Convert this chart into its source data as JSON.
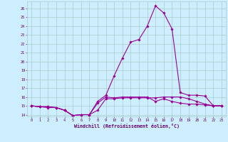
{
  "x": [
    0,
    1,
    2,
    3,
    4,
    5,
    6,
    7,
    8,
    9,
    10,
    11,
    12,
    13,
    14,
    15,
    16,
    17,
    18,
    19,
    20,
    21,
    22,
    23
  ],
  "line1": [
    15.0,
    14.9,
    14.9,
    14.8,
    14.5,
    13.9,
    14.0,
    14.0,
    14.5,
    15.8,
    15.8,
    15.9,
    15.9,
    15.9,
    15.9,
    15.9,
    16.0,
    16.0,
    16.0,
    15.8,
    15.5,
    15.2,
    15.0,
    15.0
  ],
  "line2": [
    15.0,
    14.9,
    14.9,
    14.8,
    14.5,
    13.9,
    14.0,
    14.0,
    15.3,
    16.0,
    15.9,
    16.0,
    16.0,
    16.0,
    16.0,
    15.5,
    15.8,
    15.5,
    15.3,
    15.2,
    15.2,
    15.1,
    15.0,
    15.0
  ],
  "line3": [
    15.0,
    14.9,
    14.8,
    14.8,
    14.5,
    13.9,
    14.0,
    14.0,
    15.5,
    16.2,
    18.4,
    20.4,
    22.2,
    22.5,
    24.0,
    26.3,
    25.5,
    23.7,
    16.5,
    16.2,
    16.2,
    16.1,
    15.0,
    15.0
  ],
  "line_color": "#990099",
  "bg_color": "#cceeff",
  "grid_color": "#aacccc",
  "xlabel": "Windchill (Refroidissement éolien,°C)",
  "xlabel_color": "#660066",
  "tick_color": "#660066",
  "ylim": [
    13.8,
    26.8
  ],
  "xlim": [
    -0.5,
    23.5
  ],
  "yticks": [
    14,
    15,
    16,
    17,
    18,
    19,
    20,
    21,
    22,
    23,
    24,
    25,
    26
  ],
  "xticks": [
    0,
    1,
    2,
    3,
    4,
    5,
    6,
    7,
    8,
    9,
    10,
    11,
    12,
    13,
    14,
    15,
    16,
    17,
    18,
    19,
    20,
    21,
    22,
    23
  ],
  "marker": "D",
  "marker_size": 1.8,
  "line_width": 0.8
}
